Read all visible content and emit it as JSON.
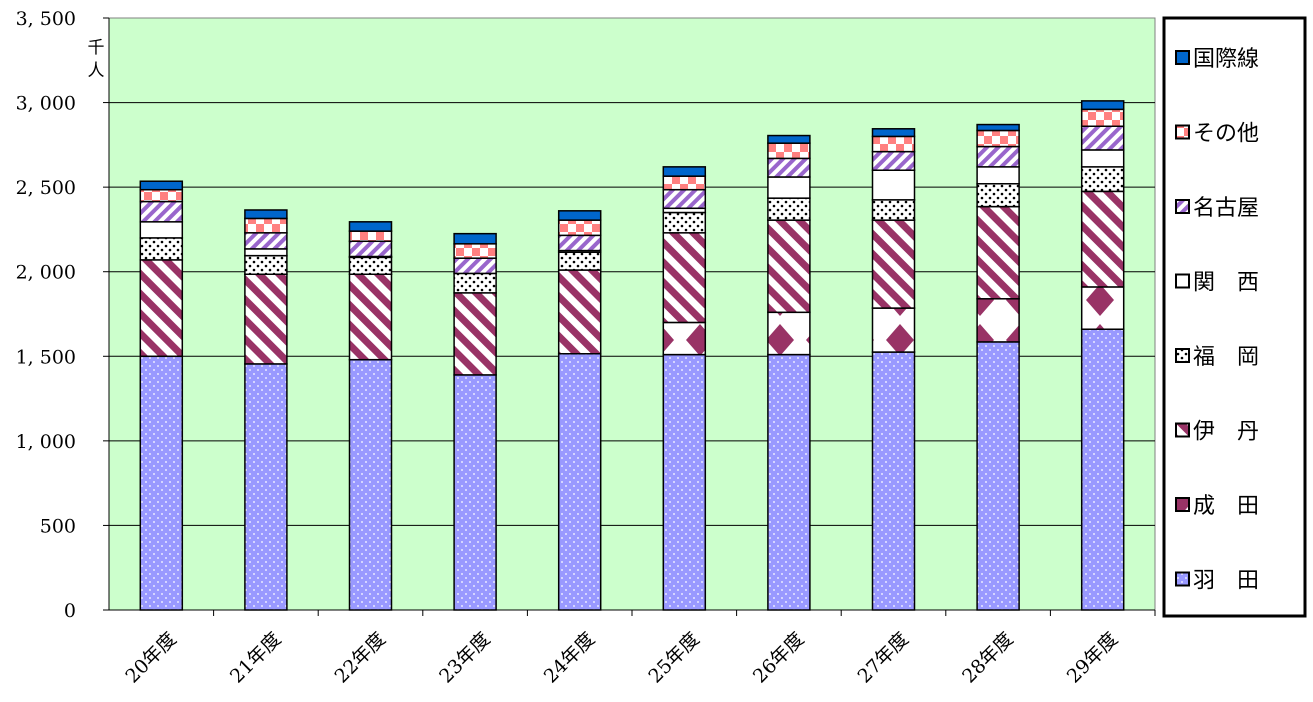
{
  "chart_data": {
    "type": "bar",
    "stacked": true,
    "title": "",
    "xlabel": "",
    "ylabel": "",
    "unit_label": [
      "千",
      "人"
    ],
    "categories": [
      "20年度",
      "21年度",
      "22年度",
      "23年度",
      "24年度",
      "25年度",
      "26年度",
      "27年度",
      "28年度",
      "29年度"
    ],
    "ylim": [
      0,
      3500
    ],
    "yticks": [
      {
        "value": 0,
        "label": "0"
      },
      {
        "value": 500,
        "label": "500"
      },
      {
        "value": 1000,
        "label": "1, 000"
      },
      {
        "value": 1500,
        "label": "1, 500"
      },
      {
        "value": 2000,
        "label": "2, 000"
      },
      {
        "value": 2500,
        "label": "2, 500"
      },
      {
        "value": 3000,
        "label": "3, 000"
      },
      {
        "value": 3500,
        "label": "3, 500"
      }
    ],
    "grid": true,
    "legend_position": "right",
    "series": [
      {
        "name": "羽　田",
        "color": "#9999ff",
        "pattern": "dots",
        "values": [
          1500,
          1455,
          1480,
          1390,
          1515,
          1510,
          1510,
          1525,
          1585,
          1660
        ]
      },
      {
        "name": "成　田",
        "color": "#993366",
        "pattern": "checker",
        "values": [
          0,
          0,
          0,
          0,
          0,
          190,
          250,
          260,
          255,
          250
        ]
      },
      {
        "name": "伊　丹",
        "color": "#993366",
        "pattern": "diag",
        "values": [
          570,
          530,
          505,
          485,
          495,
          530,
          545,
          520,
          545,
          565
        ]
      },
      {
        "name": "福　岡",
        "color": "#000000",
        "pattern": "stipple",
        "values": [
          130,
          110,
          100,
          115,
          105,
          120,
          130,
          120,
          135,
          145
        ]
      },
      {
        "name": "関　西",
        "color": "#ffffff",
        "pattern": "solid",
        "values": [
          95,
          40,
          5,
          0,
          10,
          25,
          125,
          175,
          100,
          100
        ]
      },
      {
        "name": "名古屋",
        "color": "#cc99ff",
        "pattern": "diag2",
        "values": [
          120,
          95,
          90,
          90,
          90,
          110,
          110,
          110,
          120,
          140
        ]
      },
      {
        "name": "その他",
        "color": "#ff8080",
        "pattern": "checker2",
        "values": [
          70,
          85,
          60,
          85,
          90,
          80,
          90,
          90,
          95,
          100
        ]
      },
      {
        "name": "国際線",
        "color": "#0066cc",
        "pattern": "solid",
        "values": [
          50,
          50,
          55,
          60,
          55,
          55,
          45,
          45,
          35,
          50
        ]
      }
    ]
  }
}
